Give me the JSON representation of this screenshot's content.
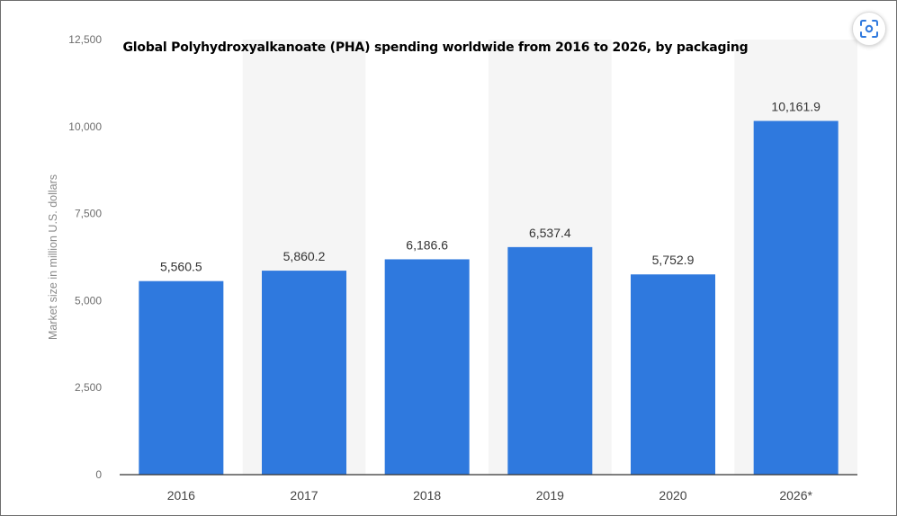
{
  "chart_data": {
    "type": "bar",
    "title": "Global Polyhydroxyalkanoate (PHA) spending worldwide from 2016 to 2026, by packaging",
    "ylabel": "Market size in million U.S. dollars",
    "xlabel": "",
    "categories": [
      "2016",
      "2017",
      "2018",
      "2019",
      "2020",
      "2026*"
    ],
    "values": [
      5560.5,
      5860.2,
      6186.6,
      6537.4,
      5752.9,
      10161.9
    ],
    "value_labels": [
      "5,560.5",
      "5,860.2",
      "6,186.6",
      "6,537.4",
      "5,752.9",
      "10,161.9"
    ],
    "ylim": [
      0,
      12500
    ],
    "yticks": [
      0,
      2500,
      5000,
      7500,
      10000,
      12500
    ],
    "ytick_labels": [
      "0",
      "2,500",
      "5,000",
      "7,500",
      "10,000",
      "12,500"
    ],
    "grid": false,
    "alternating_column_bands": true,
    "colors": {
      "bar": "#2f79de",
      "band": "#f5f5f5",
      "axis": "#333333"
    }
  },
  "toolbar": {
    "fullscreen_icon": "focus-frame-icon"
  }
}
